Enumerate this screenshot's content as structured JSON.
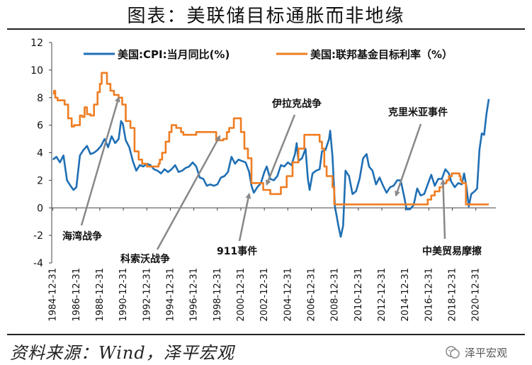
{
  "page": {
    "title": "图表：美联储目标通胀而非地缘",
    "source": "资料来源：Wind，泽平宏观",
    "watermark": "泽平宏观"
  },
  "colors": {
    "cpi": "#1f6fb4",
    "rate": "#ef7d22",
    "arrow": "#888888"
  },
  "chart_data": {
    "type": "line",
    "title": "",
    "xlabel": "",
    "ylabel": "",
    "ylim": [
      -4,
      12
    ],
    "yticks": [
      -4,
      -2,
      0,
      2,
      4,
      6,
      8,
      10,
      12
    ],
    "xlim": [
      1984.9,
      2022.7
    ],
    "xticks": [
      "1984-12-31",
      "1986-12-31",
      "1988-12-31",
      "1990-12-31",
      "1992-12-31",
      "1994-12-31",
      "1996-12-31",
      "1998-12-31",
      "2000-12-31",
      "2002-12-31",
      "2004-12-31",
      "2006-12-31",
      "2008-12-31",
      "2010-12-31",
      "2012-12-31",
      "2014-12-31",
      "2016-12-31",
      "2018-12-31",
      "2020-12-31"
    ],
    "legend": {
      "position": "top"
    },
    "series": [
      {
        "name": "美国:CPI:当月同比(%)",
        "color": "#1f6fb4",
        "x": [
          1985.0,
          1985.3,
          1985.6,
          1985.9,
          1986.2,
          1986.5,
          1986.75,
          1987.0,
          1987.3,
          1987.6,
          1987.9,
          1988.2,
          1988.5,
          1988.8,
          1989.1,
          1989.4,
          1989.7,
          1990.0,
          1990.3,
          1990.6,
          1990.8,
          1990.95,
          1991.2,
          1991.5,
          1991.8,
          1992.1,
          1992.4,
          1992.7,
          1993.0,
          1993.3,
          1993.6,
          1993.9,
          1994.2,
          1994.5,
          1994.8,
          1995.1,
          1995.4,
          1995.7,
          1996.0,
          1996.3,
          1996.6,
          1996.9,
          1997.2,
          1997.5,
          1997.8,
          1998.1,
          1998.4,
          1998.7,
          1999.0,
          1999.3,
          1999.6,
          1999.9,
          2000.2,
          2000.5,
          2000.8,
          2001.1,
          2001.4,
          2001.7,
          2001.9,
          2002.1,
          2002.4,
          2002.7,
          2003.0,
          2003.2,
          2003.5,
          2003.8,
          2004.1,
          2004.4,
          2004.7,
          2005.0,
          2005.3,
          2005.6,
          2005.75,
          2005.9,
          2006.2,
          2006.5,
          2006.7,
          2006.85,
          2007.1,
          2007.4,
          2007.7,
          2007.9,
          2008.2,
          2008.5,
          2008.6,
          2008.8,
          2009.0,
          2009.3,
          2009.5,
          2009.7,
          2009.9,
          2010.2,
          2010.5,
          2010.8,
          2011.1,
          2011.4,
          2011.7,
          2011.9,
          2012.2,
          2012.5,
          2012.8,
          2013.1,
          2013.4,
          2013.7,
          2014.0,
          2014.3,
          2014.6,
          2014.9,
          2015.1,
          2015.4,
          2015.7,
          2016.0,
          2016.3,
          2016.6,
          2016.9,
          2017.2,
          2017.5,
          2017.8,
          2018.1,
          2018.4,
          2018.7,
          2018.9,
          2019.2,
          2019.5,
          2019.8,
          2020.0,
          2020.2,
          2020.4,
          2020.6,
          2020.9,
          2021.1,
          2021.3,
          2021.5,
          2021.7,
          2021.9,
          2022.1
        ],
        "values": [
          3.5,
          3.7,
          3.3,
          3.8,
          2.0,
          1.6,
          1.3,
          1.5,
          3.8,
          4.2,
          4.5,
          3.9,
          4.0,
          4.2,
          4.5,
          5.0,
          4.4,
          5.2,
          4.7,
          5.0,
          6.3,
          6.1,
          4.9,
          4.4,
          3.4,
          2.7,
          3.1,
          3.0,
          3.2,
          3.1,
          2.8,
          2.7,
          2.5,
          2.8,
          2.6,
          2.8,
          3.1,
          2.6,
          2.7,
          2.9,
          3.0,
          3.3,
          3.0,
          2.2,
          2.1,
          1.6,
          1.7,
          1.6,
          1.7,
          2.2,
          2.3,
          2.6,
          3.7,
          3.2,
          3.5,
          3.4,
          3.3,
          2.6,
          1.6,
          1.1,
          1.5,
          1.8,
          2.6,
          3.0,
          2.1,
          2.0,
          2.3,
          3.1,
          3.0,
          3.3,
          3.1,
          3.9,
          4.7,
          3.4,
          3.6,
          4.3,
          2.1,
          1.3,
          2.5,
          2.7,
          2.8,
          4.1,
          4.2,
          5.0,
          5.6,
          3.7,
          0.1,
          -1.3,
          -2.1,
          -1.3,
          2.7,
          2.3,
          1.0,
          1.2,
          2.1,
          3.6,
          3.9,
          3.0,
          2.7,
          1.7,
          2.2,
          1.6,
          1.1,
          1.5,
          1.6,
          2.0,
          2.0,
          0.8,
          -0.1,
          -0.1,
          0.2,
          1.4,
          0.9,
          1.0,
          1.7,
          2.4,
          1.6,
          2.1,
          2.1,
          2.8,
          2.5,
          1.9,
          1.5,
          1.8,
          1.7,
          2.5,
          1.5,
          0.1,
          1.0,
          1.2,
          1.4,
          4.2,
          5.4,
          5.3,
          6.8,
          7.9
        ]
      },
      {
        "name": "美国:联邦基金目标利率（%）",
        "color": "#ef7d22",
        "x": [
          1985.0,
          1985.1,
          1985.2,
          1985.4,
          1985.7,
          1986.0,
          1986.3,
          1986.6,
          1986.8,
          1987.0,
          1987.3,
          1987.5,
          1987.7,
          1987.9,
          1988.2,
          1988.5,
          1988.8,
          1989.0,
          1989.15,
          1989.3,
          1989.6,
          1989.9,
          1990.2,
          1990.6,
          1990.9,
          1991.2,
          1991.6,
          1991.95,
          1992.3,
          1992.6,
          1993.0,
          1993.5,
          1994.0,
          1994.1,
          1994.3,
          1994.6,
          1994.9,
          1995.1,
          1995.5,
          1995.9,
          1996.1,
          1996.5,
          1997.2,
          1997.5,
          1998.0,
          1998.7,
          1998.9,
          1999.5,
          1999.8,
          2000.0,
          2000.4,
          2000.9,
          2001.0,
          2001.3,
          2001.6,
          2001.9,
          2002.5,
          2002.9,
          2003.5,
          2004.4,
          2004.9,
          2005.4,
          2005.9,
          2006.4,
          2007.6,
          2007.7,
          2007.9,
          2008.1,
          2008.3,
          2008.8,
          2008.95,
          2015.9,
          2016.9,
          2017.2,
          2017.5,
          2017.9,
          2018.2,
          2018.5,
          2018.7,
          2018.95,
          2019.4,
          2019.6,
          2019.7,
          2019.8,
          2020.15,
          2022.1
        ],
        "values": [
          8.3,
          8.5,
          8.0,
          7.8,
          7.8,
          7.5,
          6.5,
          5.9,
          6.0,
          6.0,
          6.7,
          6.6,
          7.3,
          6.8,
          6.7,
          7.5,
          8.4,
          9.0,
          9.8,
          9.8,
          9.0,
          8.5,
          8.2,
          8.0,
          7.5,
          6.3,
          5.8,
          4.1,
          3.5,
          3.2,
          3.0,
          3.0,
          3.2,
          3.5,
          4.0,
          4.8,
          5.5,
          6.0,
          5.8,
          5.5,
          5.3,
          5.3,
          5.5,
          5.5,
          5.5,
          5.5,
          4.9,
          5.0,
          5.5,
          5.8,
          6.5,
          6.5,
          5.5,
          4.3,
          3.6,
          1.8,
          1.8,
          1.3,
          1.0,
          1.5,
          2.3,
          3.3,
          4.3,
          5.3,
          5.3,
          4.8,
          4.3,
          3.0,
          2.3,
          1.5,
          0.25,
          0.25,
          0.6,
          0.9,
          1.2,
          1.5,
          1.8,
          2.0,
          2.3,
          2.5,
          2.5,
          2.3,
          2.0,
          1.8,
          0.25,
          0.25
        ]
      }
    ],
    "annotations": [
      {
        "text": "海湾战争",
        "x": 1990.6,
        "y": 8.0
      },
      {
        "text": "科索沃战争",
        "x": 1999.2,
        "y": 5.2
      },
      {
        "text": "911事件",
        "x": 2001.7,
        "y": 1.0
      },
      {
        "text": "伊拉克战争",
        "x": 2003.2,
        "y": 1.7
      },
      {
        "text": "克里米亚事件",
        "x": 2014.2,
        "y": 0.9
      },
      {
        "text": "中美贸易摩擦",
        "x": 2018.2,
        "y": 2.0
      }
    ]
  }
}
